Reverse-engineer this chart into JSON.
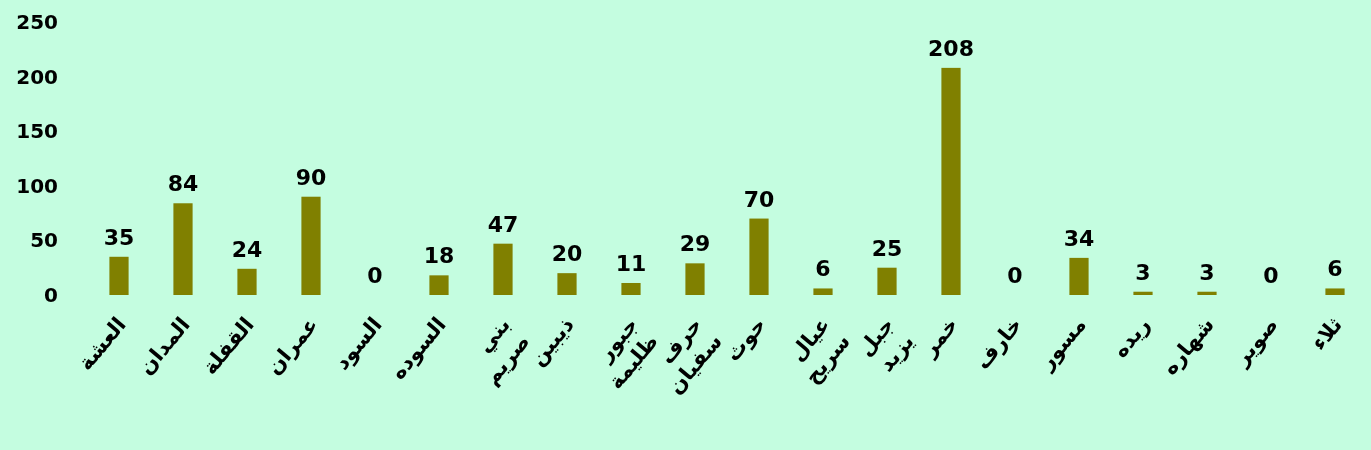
{
  "chart_data": {
    "type": "bar",
    "categories": [
      "العشة",
      "المدان",
      "القفلة",
      "عمران",
      "السود",
      "السوده",
      "بني صريم",
      "ذيبين",
      "جبور ظليمة",
      "حرف سفيان",
      "حوث",
      "عيال سريح",
      "جبل يزيد",
      "خمر",
      "خارف",
      "مسور",
      "ريده",
      "شهاره",
      "صوير",
      "ثلاء"
    ],
    "values": [
      35,
      84,
      24,
      90,
      0,
      18,
      47,
      20,
      11,
      29,
      70,
      6,
      25,
      208,
      0,
      34,
      3,
      3,
      0,
      6
    ],
    "color": "#808000",
    "ylim": [
      0,
      250
    ],
    "yticks": [
      0,
      50,
      100,
      150,
      200,
      250
    ],
    "data_labels": true,
    "grid": false
  }
}
